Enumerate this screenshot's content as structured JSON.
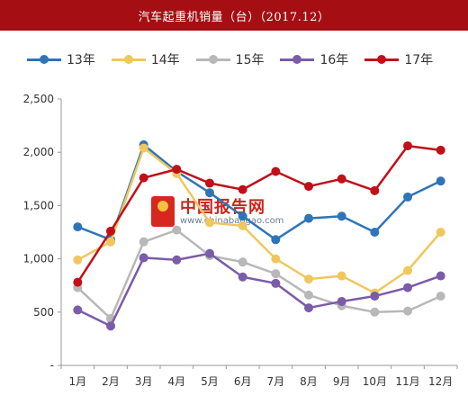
{
  "title": "汽车起重机销量（台）（2017.12）",
  "watermark": {
    "text": "中国报告网",
    "url": "www.chinabaogao.com"
  },
  "chart_data": {
    "type": "line",
    "title": "汽车起重机销量（台）（2017.12）",
    "xlabel": "",
    "ylabel": "",
    "categories": [
      "1月",
      "2月",
      "3月",
      "4月",
      "5月",
      "6月",
      "7月",
      "8月",
      "9月",
      "10月",
      "11月",
      "12月"
    ],
    "ylim": [
      0,
      2500
    ],
    "yticks": [
      0,
      500,
      1000,
      1500,
      2000,
      2500
    ],
    "ytick_labels": [
      "-",
      "500",
      "1,000",
      "1,500",
      "2,000",
      "2,500"
    ],
    "grid": false,
    "legend_position": "top",
    "series": [
      {
        "name": "13年",
        "color": "#2e75b6",
        "values": [
          1300,
          1180,
          2070,
          1820,
          1620,
          1400,
          1180,
          1380,
          1400,
          1250,
          1580,
          1730
        ]
      },
      {
        "name": "14年",
        "color": "#f0c75e",
        "values": [
          990,
          1160,
          2040,
          1800,
          1340,
          1310,
          1000,
          810,
          840,
          680,
          890,
          1250
        ]
      },
      {
        "name": "15年",
        "color": "#b8b8b8",
        "values": [
          730,
          440,
          1160,
          1270,
          1030,
          970,
          860,
          660,
          560,
          500,
          510,
          650
        ]
      },
      {
        "name": "16年",
        "color": "#7a5ca8",
        "values": [
          520,
          370,
          1010,
          990,
          1050,
          830,
          770,
          540,
          600,
          650,
          730,
          840
        ]
      },
      {
        "name": "17年",
        "color": "#c0101a",
        "values": [
          780,
          1260,
          1760,
          1840,
          1710,
          1650,
          1820,
          1680,
          1750,
          1640,
          2060,
          2020
        ]
      }
    ]
  }
}
